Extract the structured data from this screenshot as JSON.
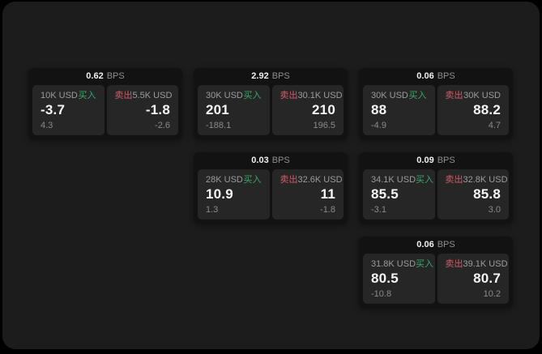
{
  "page": {
    "background_color": "#000000",
    "panel_color": "#1c1c1c"
  },
  "labels": {
    "buy": "买入",
    "sell": "卖出",
    "bps_unit": "BPS"
  },
  "colors": {
    "buy_green": "#3da66a",
    "sell_red": "#d45869",
    "card_background": "#121212",
    "tile_background": "#262626"
  },
  "cards": [
    {
      "bps": "0.62",
      "grid": {
        "row": 1,
        "col": 1
      },
      "buy": {
        "amount": "10K USD",
        "value": "-3.7",
        "delta": "4.3"
      },
      "sell": {
        "amount": "5.5K USD",
        "value": "-1.8",
        "delta": "-2.6"
      }
    },
    {
      "bps": "2.92",
      "grid": {
        "row": 1,
        "col": 2
      },
      "buy": {
        "amount": "30K USD",
        "value": "201",
        "delta": "-188.1"
      },
      "sell": {
        "amount": "30.1K USD",
        "value": "210",
        "delta": "196.5"
      }
    },
    {
      "bps": "0.06",
      "grid": {
        "row": 1,
        "col": 3
      },
      "buy": {
        "amount": "30K USD",
        "value": "88",
        "delta": "-4.9"
      },
      "sell": {
        "amount": "30K USD",
        "value": "88.2",
        "delta": "4.7"
      }
    },
    {
      "bps": "0.03",
      "grid": {
        "row": 2,
        "col": 2
      },
      "buy": {
        "amount": "28K USD",
        "value": "10.9",
        "delta": "1.3"
      },
      "sell": {
        "amount": "32.6K USD",
        "value": "11",
        "delta": "-1.8"
      }
    },
    {
      "bps": "0.09",
      "grid": {
        "row": 2,
        "col": 3
      },
      "buy": {
        "amount": "34.1K USD",
        "value": "85.5",
        "delta": "-3.1"
      },
      "sell": {
        "amount": "32.8K USD",
        "value": "85.8",
        "delta": "3.0"
      }
    },
    {
      "bps": "0.06",
      "grid": {
        "row": 3,
        "col": 3
      },
      "buy": {
        "amount": "31.8K USD",
        "value": "80.5",
        "delta": "-10.8"
      },
      "sell": {
        "amount": "39.1K USD",
        "value": "80.7",
        "delta": "10.2"
      }
    }
  ]
}
